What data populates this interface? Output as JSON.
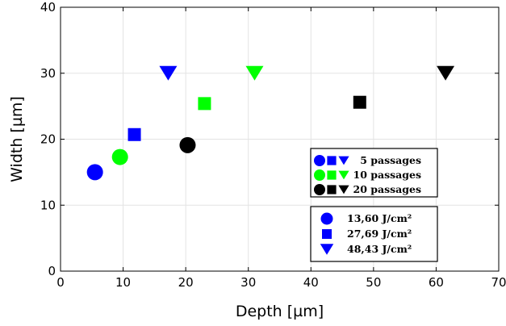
{
  "chart_data": {
    "type": "scatter",
    "xlabel": "Depth [µm]",
    "ylabel": "Width [µm]",
    "xlim": [
      0,
      70
    ],
    "ylim": [
      0,
      40
    ],
    "xticks": [
      "0",
      "10",
      "20",
      "30",
      "40",
      "50",
      "60",
      "70"
    ],
    "yticks": [
      "0",
      "10",
      "20",
      "30",
      "40"
    ],
    "grid": true,
    "series": [
      {
        "passages": "5 passages",
        "fluence": "13,60 J/cm²",
        "color": "#0000ff",
        "marker": "circle",
        "x": 5.5,
        "y": 15.0
      },
      {
        "passages": "5 passages",
        "fluence": "27,69 J/cm²",
        "color": "#0000ff",
        "marker": "square",
        "x": 11.8,
        "y": 20.7
      },
      {
        "passages": "5 passages",
        "fluence": "48,43 J/cm²",
        "color": "#0000ff",
        "marker": "triangle-down",
        "x": 17.2,
        "y": 30.0
      },
      {
        "passages": "10 passages",
        "fluence": "13,60 J/cm²",
        "color": "#00ff00",
        "marker": "circle",
        "x": 9.5,
        "y": 17.3
      },
      {
        "passages": "10 passages",
        "fluence": "27,69 J/cm²",
        "color": "#00ff00",
        "marker": "square",
        "x": 23.0,
        "y": 25.4
      },
      {
        "passages": "10 passages",
        "fluence": "48,43 J/cm²",
        "color": "#00ff00",
        "marker": "triangle-down",
        "x": 31.0,
        "y": 30.0
      },
      {
        "passages": "20 passages",
        "fluence": "13,60 J/cm²",
        "color": "#000000",
        "marker": "circle",
        "x": 20.3,
        "y": 19.1
      },
      {
        "passages": "20 passages",
        "fluence": "27,69 J/cm²",
        "color": "#000000",
        "marker": "square",
        "x": 47.8,
        "y": 25.6
      },
      {
        "passages": "20 passages",
        "fluence": "48,43 J/cm²",
        "color": "#000000",
        "marker": "triangle-down",
        "x": 61.5,
        "y": 30.0
      }
    ],
    "legend_passages": [
      {
        "label": "5 passages",
        "color": "#0000ff"
      },
      {
        "label": "10 passages",
        "color": "#00ff00"
      },
      {
        "label": "20 passages",
        "color": "#000000"
      }
    ],
    "legend_fluence": [
      {
        "label": "13,60 J/cm²",
        "marker": "circle",
        "color": "#0000ff"
      },
      {
        "label": "27,69 J/cm²",
        "marker": "square",
        "color": "#0000ff"
      },
      {
        "label": "48,43 J/cm²",
        "marker": "triangle-down",
        "color": "#0000ff"
      }
    ],
    "legend_placement": "right, middle-lower"
  }
}
